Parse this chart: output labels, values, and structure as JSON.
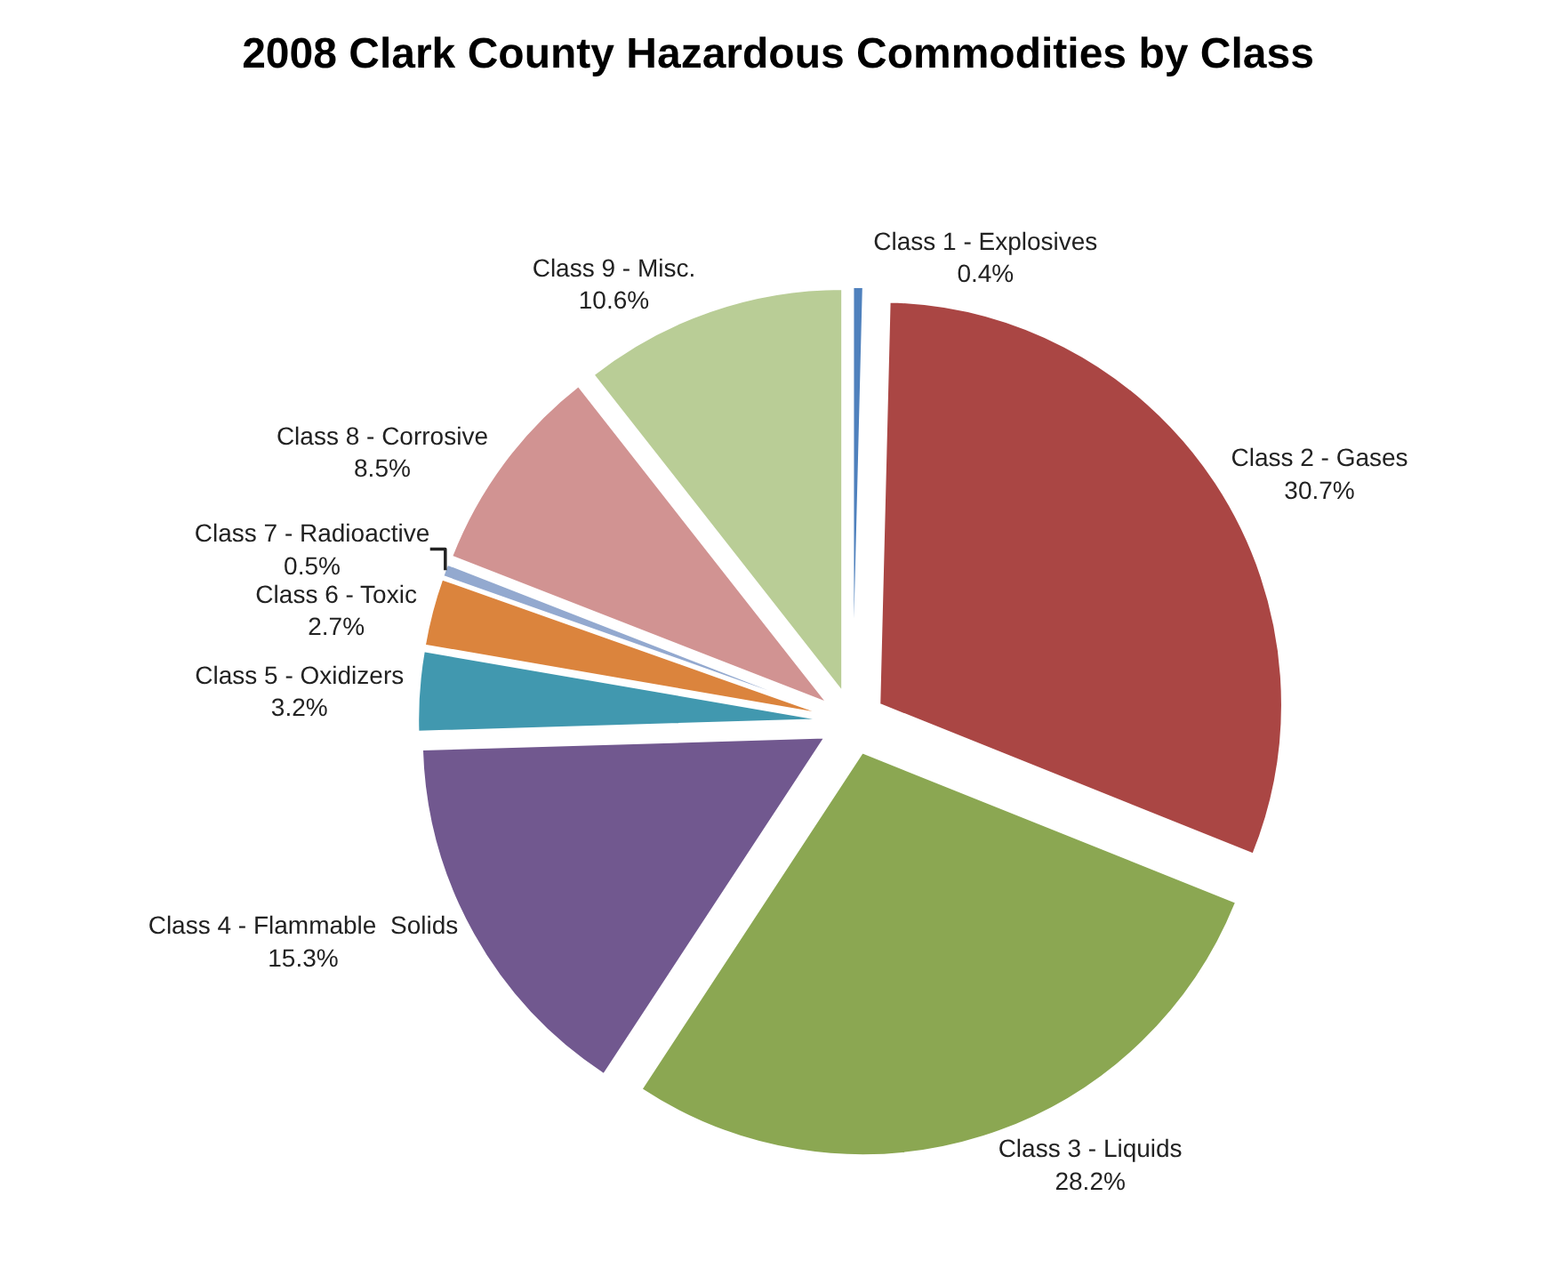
{
  "chart_data": {
    "type": "pie",
    "title": "2008 Clark County Hazardous Commodities by Class",
    "categories": [
      "Class 1 - Explosives",
      "Class 2 - Gases",
      "Class 3 - Liquids",
      "Class 4 - Flammable  Solids",
      "Class 5 - Oxidizers",
      "Class 6 - Toxic",
      "Class 7 - Radioactive",
      "Class 8 - Corrosive",
      "Class 9 - Misc."
    ],
    "values": [
      0.4,
      30.7,
      28.2,
      15.3,
      3.2,
      2.7,
      0.5,
      8.5,
      10.6
    ],
    "value_labels": [
      "0.4%",
      "30.7%",
      "28.2%",
      "15.3%",
      "3.2%",
      "2.7%",
      "0.5%",
      "8.5%",
      "10.6%"
    ],
    "colors": [
      "#4f81bd",
      "#aa4644",
      "#8ba752",
      "#71588f",
      "#4198af",
      "#db843d",
      "#93a9cf",
      "#d19392",
      "#b9cd96"
    ],
    "legend": false
  }
}
